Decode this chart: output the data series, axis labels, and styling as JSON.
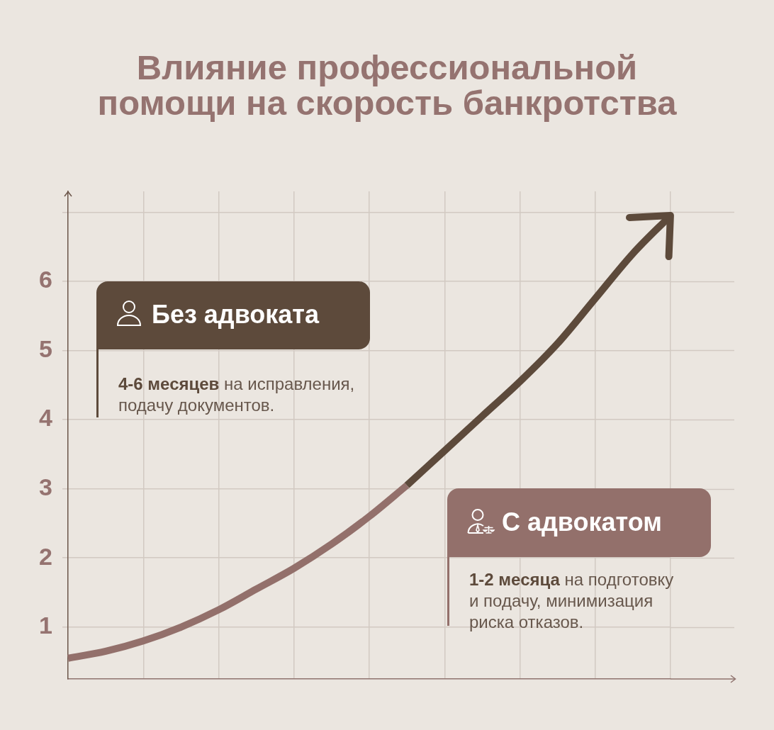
{
  "chart_data": {
    "type": "line",
    "title": "Влияние профессиональной помощи на скорость банкротства",
    "categories": [
      null,
      null,
      null,
      null,
      null,
      null,
      null,
      null,
      null,
      null,
      null,
      null,
      null,
      null,
      null,
      null,
      null
    ],
    "series": [
      {
        "name": "Без адвоката",
        "color": "#5d4a3b",
        "values": [
          null,
          null,
          null,
          null,
          null,
          null,
          null,
          null,
          null,
          3.05,
          3.55,
          4.05,
          4.55,
          5.1,
          5.75,
          6.4,
          6.95
        ]
      },
      {
        "name": "С адвокатом",
        "color": "#93706b",
        "values": [
          0.55,
          0.65,
          0.8,
          1.0,
          1.25,
          1.55,
          1.85,
          2.2,
          2.6,
          3.05,
          null,
          null,
          null,
          null,
          null,
          null,
          null
        ]
      }
    ],
    "ylim": [
      0.25,
      7.3
    ],
    "yticks": [
      1,
      2,
      3,
      4,
      5,
      6,
      {
        "value": 7,
        "label": null
      }
    ],
    "grid": true,
    "tick_labels": "y",
    "marker": "none",
    "annotations": [
      "4-6 месяцев",
      "на исправления, подачу документов.",
      "1-2 месяца",
      "на подготовку и подачу, минимизация риска отказов."
    ]
  }
}
